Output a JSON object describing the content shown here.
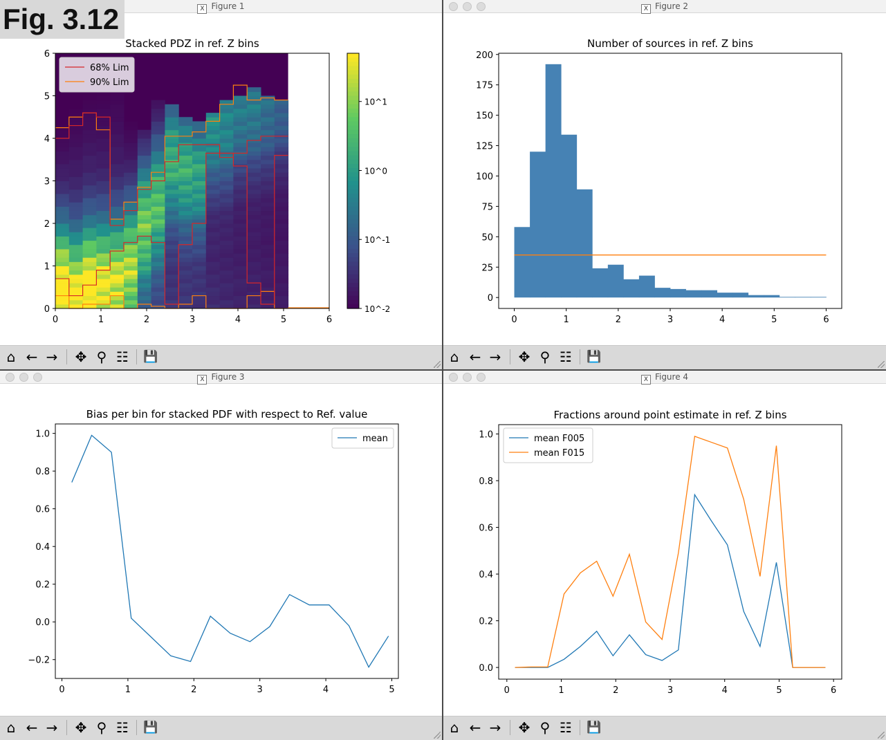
{
  "corner_label": "Fig. 3.12",
  "icons": [
    "home-icon",
    "back-arrow-icon",
    "forward-arrow-icon",
    "pan-icon",
    "zoom-icon",
    "configure-subplots-icon",
    "save-icon"
  ],
  "windows": [
    {
      "title": "Figure 1"
    },
    {
      "title": "Figure 2"
    },
    {
      "title": "Figure 3"
    },
    {
      "title": "Figure 4"
    }
  ],
  "colors": {
    "blue": "#1f77b4",
    "orange": "#ff7f0e",
    "red": "#d62728",
    "bar": "#4682b4"
  },
  "chart_data": [
    {
      "type": "heatmap",
      "title": "Stacked PDZ in ref. Z bins",
      "x_ticks": [
        "0",
        "1",
        "2",
        "3",
        "4",
        "5",
        "6"
      ],
      "y_ticks": [
        "0",
        "1",
        "2",
        "3",
        "4",
        "5",
        "6"
      ],
      "xlim": [
        0,
        6
      ],
      "ylim": [
        0,
        6
      ],
      "colorbar": {
        "scale": "log",
        "ticks": [
          "10^-2",
          "10^-1",
          "10^0",
          "10^1"
        ],
        "range": [
          0.01,
          50
        ],
        "colormap": "viridis"
      },
      "legend": {
        "placement": "top-left",
        "entries": [
          "68% Lim",
          "90% Lim"
        ]
      },
      "bin_edges": [
        0,
        0.3,
        0.6,
        0.9,
        1.2,
        1.5,
        1.8,
        2.1,
        2.4,
        2.7,
        3.0,
        3.3,
        3.6,
        3.9,
        4.2,
        4.5,
        4.8,
        5.1
      ],
      "lim68_upper": [
        4.0,
        4.3,
        4.6,
        4.5,
        1.95,
        2.3,
        2.8,
        3.0,
        3.45,
        3.85,
        3.85,
        3.85,
        3.55,
        3.65,
        3.95,
        4.05,
        4.05
      ],
      "lim68_lower": [
        0.7,
        0.3,
        0.55,
        0.9,
        1.35,
        1.55,
        1.7,
        1.55,
        0.1,
        1.5,
        2.0,
        3.65,
        3.65,
        3.35,
        0.6,
        0.1,
        3.6
      ],
      "lim90_upper": [
        4.25,
        4.5,
        4.6,
        4.2,
        2.1,
        2.5,
        2.85,
        3.2,
        4.05,
        4.05,
        4.15,
        4.4,
        4.8,
        5.25,
        4.9,
        4.95,
        4.9
      ],
      "lim90_lower": [
        0.3,
        0.0,
        0.1,
        0.1,
        0.3,
        0.0,
        0.1,
        0.05,
        0.0,
        0.1,
        0.3,
        0.0,
        0.0,
        0.0,
        0.3,
        0.4,
        0.0
      ],
      "heat_top": [
        4.3,
        4.7,
        5.0,
        5.1,
        5.3,
        4.4,
        4.2,
        4.9,
        4.8,
        4.5,
        4.4,
        4.6,
        4.9,
        5.0,
        5.2,
        5.0,
        4.9
      ],
      "heat_peak": [
        0.4,
        0.2,
        0.4,
        0.5,
        0.6,
        1.0,
        2.0,
        2.5,
        3.5,
        3.3,
        3.2,
        4.3,
        4.3,
        4.6,
        4.7,
        4.7,
        4.8
      ],
      "heat_intensity": [
        1.0,
        0.95,
        1.0,
        0.9,
        0.85,
        0.8,
        0.75,
        0.7,
        0.65,
        0.65,
        0.6,
        0.55,
        0.5,
        0.45,
        0.45,
        0.4,
        0.35
      ]
    },
    {
      "type": "bar",
      "title": "Number of sources in ref. Z bins",
      "x_ticks": [
        "0",
        "1",
        "2",
        "3",
        "4",
        "5",
        "6"
      ],
      "y_ticks": [
        "0",
        "25",
        "50",
        "75",
        "100",
        "125",
        "150",
        "175",
        "200"
      ],
      "xlim": [
        -0.3,
        6.3
      ],
      "ylim": [
        -9,
        201
      ],
      "bin_edges": [
        0,
        0.3,
        0.6,
        0.9,
        1.2,
        1.5,
        1.8,
        2.1,
        2.4,
        2.7,
        3.0,
        3.3,
        3.6,
        3.9,
        4.2,
        4.5,
        4.8,
        5.1,
        5.4,
        5.7,
        6.0
      ],
      "values": [
        58,
        120,
        192,
        134,
        89,
        24,
        27,
        15,
        18,
        8,
        7,
        6,
        6,
        4,
        4,
        2,
        2,
        0.5,
        0.5,
        0.5
      ],
      "reference_line": {
        "x": [
          0,
          6
        ],
        "y": 35
      }
    },
    {
      "type": "line",
      "title": "Bias per bin for stacked PDF with respect to Ref. value",
      "x_ticks": [
        "0",
        "1",
        "2",
        "3",
        "4",
        "5"
      ],
      "y_ticks": [
        "−0.2",
        "0.0",
        "0.2",
        "0.4",
        "0.6",
        "0.8",
        "1.0"
      ],
      "xlim": [
        -0.1,
        5.1
      ],
      "ylim": [
        -0.3,
        1.05
      ],
      "legend": {
        "placement": "top-right"
      },
      "series": [
        {
          "name": "mean",
          "x": [
            0.15,
            0.45,
            0.75,
            1.05,
            1.35,
            1.65,
            1.95,
            2.25,
            2.55,
            2.85,
            3.15,
            3.45,
            3.75,
            4.05,
            4.35,
            4.65,
            4.95
          ],
          "y": [
            0.74,
            0.99,
            0.9,
            0.02,
            -0.08,
            -0.18,
            -0.21,
            0.03,
            -0.06,
            -0.105,
            -0.025,
            0.145,
            0.09,
            0.09,
            -0.02,
            -0.24,
            -0.075
          ]
        }
      ]
    },
    {
      "type": "line",
      "title": "Fractions around point estimate in ref. Z bins",
      "x_ticks": [
        "0",
        "1",
        "2",
        "3",
        "4",
        "5",
        "6"
      ],
      "y_ticks": [
        "0.0",
        "0.2",
        "0.4",
        "0.6",
        "0.8",
        "1.0"
      ],
      "xlim": [
        -0.15,
        6.15
      ],
      "ylim": [
        -0.05,
        1.04
      ],
      "legend": {
        "placement": "top-left"
      },
      "series": [
        {
          "name": "mean F005",
          "x": [
            0.15,
            0.45,
            0.75,
            1.05,
            1.35,
            1.65,
            1.95,
            2.25,
            2.55,
            2.85,
            3.15,
            3.45,
            3.75,
            4.05,
            4.35,
            4.65,
            4.95,
            5.25,
            5.55,
            5.85
          ],
          "y": [
            0.0,
            0.0,
            0.0,
            0.035,
            0.09,
            0.155,
            0.05,
            0.14,
            0.055,
            0.03,
            0.075,
            0.74,
            0.63,
            0.525,
            0.24,
            0.09,
            0.45,
            0.0,
            0.0,
            0.0
          ]
        },
        {
          "name": "mean F015",
          "x": [
            0.15,
            0.45,
            0.75,
            1.05,
            1.35,
            1.65,
            1.95,
            2.25,
            2.55,
            2.85,
            3.15,
            3.45,
            3.75,
            4.05,
            4.35,
            4.65,
            4.95,
            5.25,
            5.55,
            5.85
          ],
          "y": [
            0.0,
            0.002,
            0.002,
            0.315,
            0.405,
            0.455,
            0.305,
            0.485,
            0.195,
            0.12,
            0.49,
            0.99,
            0.965,
            0.94,
            0.72,
            0.39,
            0.95,
            0.0,
            0.0,
            0.0
          ]
        }
      ]
    }
  ]
}
